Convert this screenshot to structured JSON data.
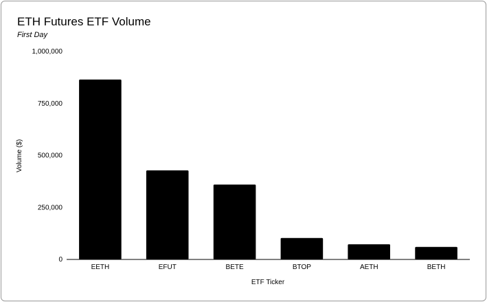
{
  "chart_data": {
    "type": "bar",
    "title": "ETH Futures ETF Volume",
    "subtitle": "First Day",
    "xlabel": "ETF Ticker",
    "ylabel": "Volume ($)",
    "categories": [
      "EETH",
      "EFUT",
      "BETE",
      "BTOP",
      "AETH",
      "BETH"
    ],
    "values": [
      865000,
      428000,
      360000,
      103000,
      73000,
      60000
    ],
    "ylim": [
      0,
      1000000
    ],
    "yticks": [
      0,
      250000,
      500000,
      750000,
      1000000
    ],
    "ytick_labels": [
      "0",
      "250,000",
      "500,000",
      "750,000",
      "1,000,000"
    ],
    "grid": false,
    "legend": "none",
    "bar_color": "#000000"
  }
}
